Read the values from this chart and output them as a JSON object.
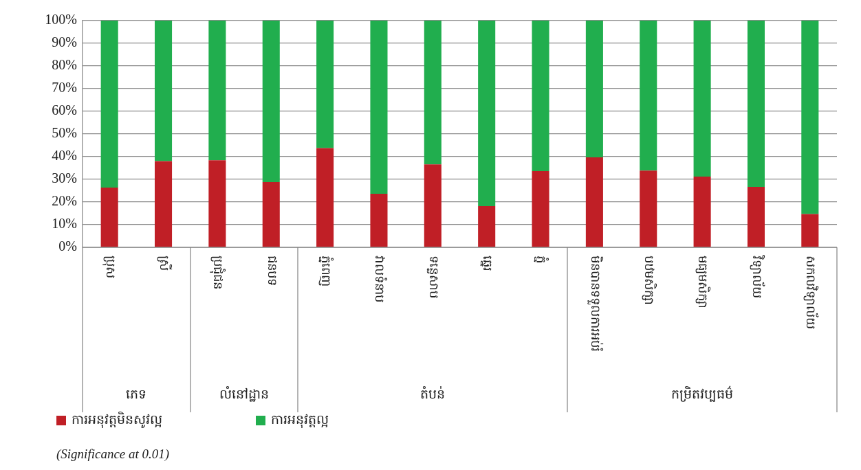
{
  "chart_data": {
    "type": "bar",
    "stacked": true,
    "categories": [
      "ប្រុស",
      "ស្រី",
      "ប្រជុំជន",
      "ជនបទ",
      "ភ្នំពេញ",
      "វាលទំនាប",
      "ទន្លេសាប",
      "ឆ្នេរ",
      "ភ្នំ",
      "មិនបានទទួលការអប់រំ",
      "បឋមសិក្សា",
      "មធ្យមសិក្សា",
      "វិទ្យាល័យ",
      "សកលវិទ្យាល័យ"
    ],
    "series": [
      {
        "name": "ការអនុវត្តមិនសូវល្អ",
        "color": "#c01f26",
        "values": [
          26.4,
          38,
          38.4,
          28.8,
          43.8,
          23.6,
          36.6,
          18.2,
          33.6,
          39.7,
          33.9,
          31.2,
          26.7,
          14.7
        ]
      },
      {
        "name": "ការអនុវត្តល្អ",
        "color": "#21ae4e",
        "values": [
          73.6,
          62,
          61.6,
          71.2,
          56.2,
          76.4,
          63.4,
          81.8,
          66.4,
          60.3,
          66.1,
          68.8,
          73.3,
          85.3
        ]
      }
    ],
    "ylim": [
      0,
      100
    ],
    "yticks": [
      {
        "value": 0,
        "label": "0%"
      },
      {
        "value": 10,
        "label": "10%"
      },
      {
        "value": 20,
        "label": "20%"
      },
      {
        "value": 30,
        "label": "30%"
      },
      {
        "value": 40,
        "label": "40%"
      },
      {
        "value": 50,
        "label": "50%"
      },
      {
        "value": 60,
        "label": "60%"
      },
      {
        "value": 70,
        "label": "70%"
      },
      {
        "value": 80,
        "label": "80%"
      },
      {
        "value": 90,
        "label": "90%"
      },
      {
        "value": 100,
        "label": "100%"
      }
    ],
    "grid": "y",
    "legend": "bottom left",
    "annotations": [
      "ភេទ",
      "លំនៅដ្ឋាន",
      "តំបន់",
      "កម្រិតវប្បធម៌",
      "(Significance at 0.01)"
    ]
  }
}
